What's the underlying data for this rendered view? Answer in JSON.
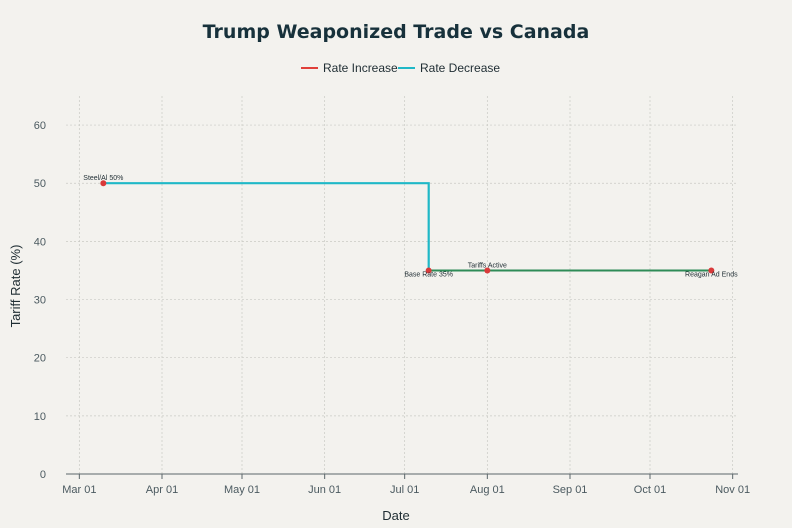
{
  "chart_data": {
    "type": "line",
    "title": "Trump Weaponized Trade vs Canada",
    "xlabel": "Date",
    "ylabel": "Tariff Rate (%)",
    "ylim": [
      0,
      65
    ],
    "yticks": [
      0,
      10,
      20,
      30,
      40,
      50,
      60
    ],
    "xlim": [
      "2025-02-24",
      "2025-11-03"
    ],
    "xticks": [
      {
        "date": "2025-03-01",
        "label": "Mar 01"
      },
      {
        "date": "2025-04-01",
        "label": "Apr 01"
      },
      {
        "date": "2025-05-01",
        "label": "May 01"
      },
      {
        "date": "2025-06-01",
        "label": "Jun 01"
      },
      {
        "date": "2025-07-01",
        "label": "Jul 01"
      },
      {
        "date": "2025-08-01",
        "label": "Aug 01"
      },
      {
        "date": "2025-09-01",
        "label": "Sep 01"
      },
      {
        "date": "2025-10-01",
        "label": "Oct 01"
      },
      {
        "date": "2025-11-01",
        "label": "Nov 01"
      }
    ],
    "grid": true,
    "legend_position": "top-center",
    "series": [
      {
        "name": "Rate Increase",
        "color": "#e0403a",
        "points": [
          {
            "x": "2025-07-10",
            "y": 35
          },
          {
            "x": "2025-10-24",
            "y": 35
          }
        ]
      },
      {
        "name": "Rate Decrease",
        "color": "#1fb8c7",
        "points": [
          {
            "x": "2025-03-10",
            "y": 50
          },
          {
            "x": "2025-07-10",
            "y": 50
          },
          {
            "x": "2025-07-10",
            "y": 35
          }
        ]
      }
    ],
    "connector": {
      "color": "#2e8b57",
      "points": [
        {
          "x": "2025-07-10",
          "y": 35
        },
        {
          "x": "2025-10-24",
          "y": 35
        }
      ]
    },
    "markers": [
      {
        "x": "2025-03-10",
        "y": 50,
        "label": "Steel/Al 50%",
        "label_pos": "above"
      },
      {
        "x": "2025-07-10",
        "y": 35,
        "label": "Base Rate 35%",
        "label_pos": "below"
      },
      {
        "x": "2025-08-01",
        "y": 35,
        "label": "Tariffs Active",
        "label_pos": "above"
      },
      {
        "x": "2025-10-24",
        "y": 35,
        "label": "Reagan Ad Ends",
        "label_pos": "below"
      }
    ],
    "marker_color": "#d93a3a"
  }
}
